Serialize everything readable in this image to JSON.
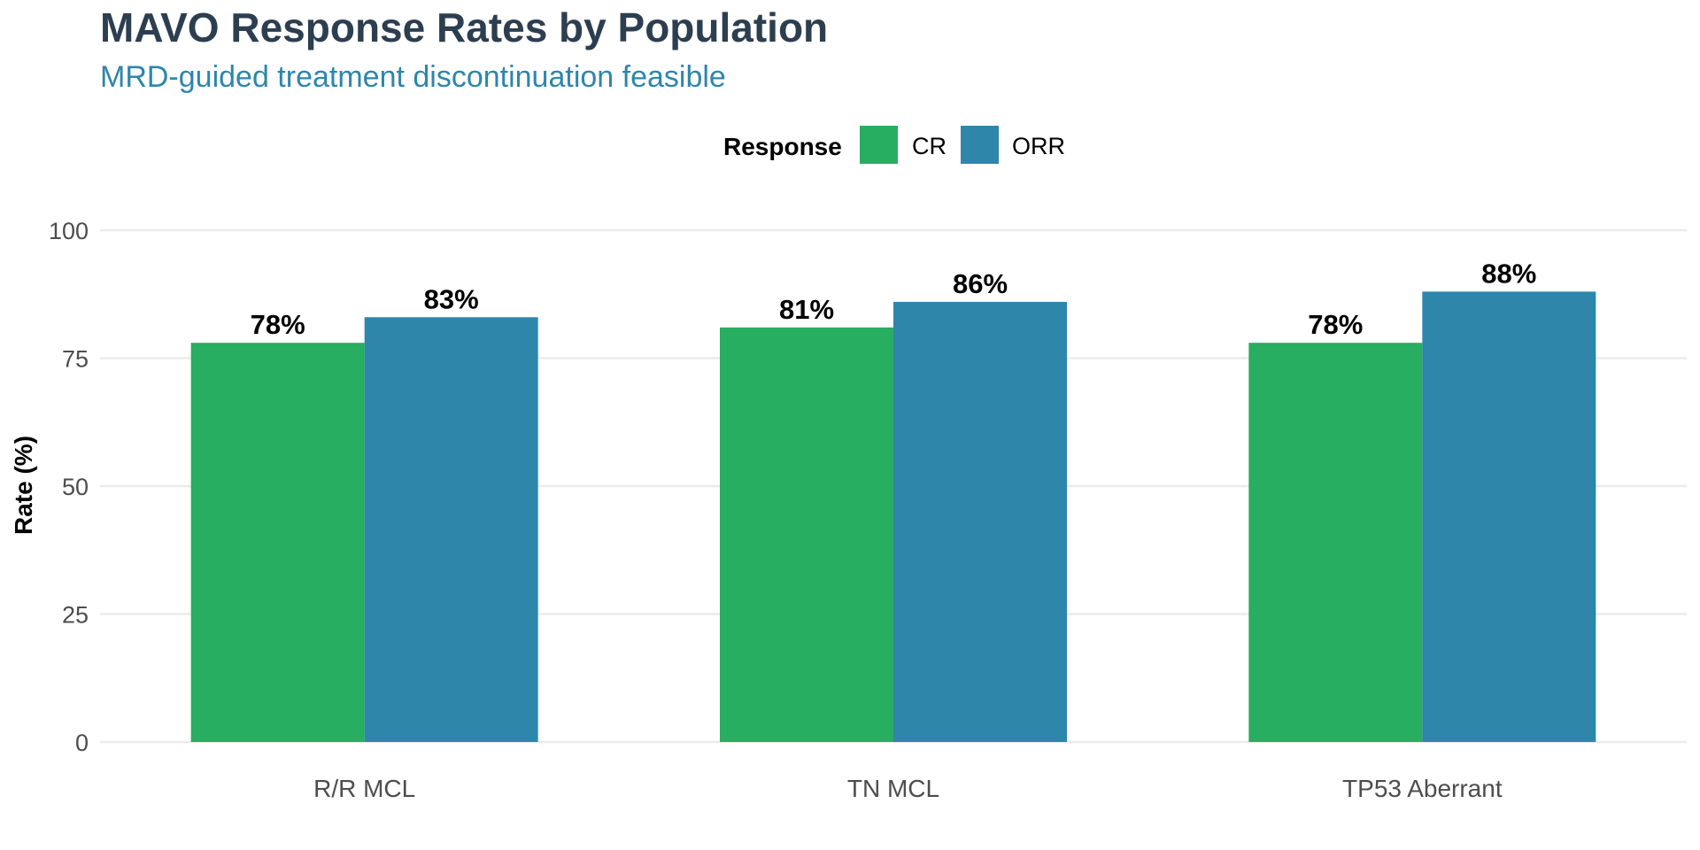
{
  "chart_data": {
    "type": "bar",
    "title": "MAVO Response Rates by Population",
    "subtitle": "MRD-guided treatment discontinuation feasible",
    "xlabel": "",
    "ylabel": "Rate (%)",
    "categories": [
      "R/R MCL",
      "TN MCL",
      "TP53 Aberrant"
    ],
    "series": [
      {
        "name": "CR",
        "color": "#27ae60",
        "values": [
          78,
          81,
          78
        ],
        "labels": [
          "78%",
          "81%",
          "78%"
        ]
      },
      {
        "name": "ORR",
        "color": "#2e86ab",
        "values": [
          83,
          86,
          88
        ],
        "labels": [
          "83%",
          "86%",
          "88%"
        ]
      }
    ],
    "ylim": [
      0,
      100
    ],
    "yticks": [
      0,
      25,
      50,
      75,
      100
    ],
    "ytick_labels": [
      "0",
      "25",
      "50",
      "75",
      "100"
    ],
    "grid": true,
    "legend": {
      "title": "Response",
      "position": "top"
    }
  }
}
